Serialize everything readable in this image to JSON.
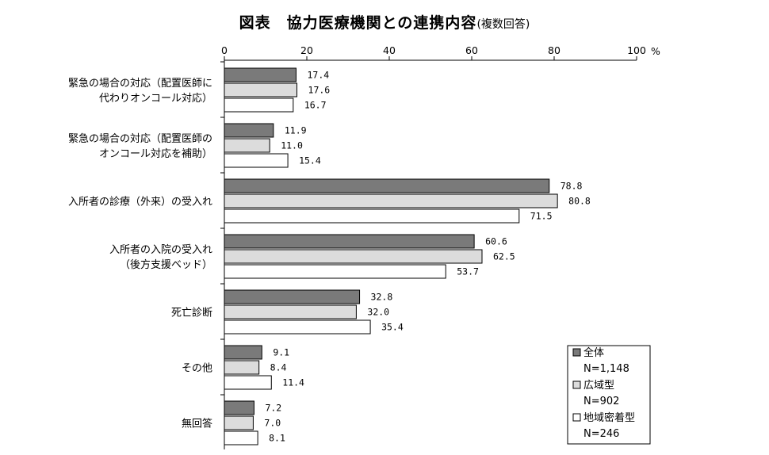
{
  "title": {
    "main": "図表　協力医療機関との連携内容",
    "sub": "(複数回答)"
  },
  "chart_data": {
    "type": "bar",
    "orientation": "horizontal",
    "unit": "%",
    "xlim": [
      0,
      100
    ],
    "ticks": [
      0,
      20,
      40,
      60,
      80,
      100
    ],
    "tick_labels": [
      "0",
      "20",
      "40",
      "60",
      "80",
      "100"
    ],
    "categories": [
      [
        "緊急の場合の対応（配置医師に",
        "代わりオンコール対応）"
      ],
      [
        "緊急の場合の対応（配置医師の",
        "オンコール対応を補助）"
      ],
      [
        "入所者の診療（外来）の受入れ"
      ],
      [
        "入所者の入院の受入れ",
        "（後方支援ベッド）"
      ],
      [
        "死亡診断"
      ],
      [
        "その他"
      ],
      [
        "無回答"
      ]
    ],
    "series": [
      {
        "name": "全体",
        "n_label": "N=1,148",
        "color": "#7a7a7a",
        "values": [
          17.4,
          11.9,
          78.8,
          60.6,
          32.8,
          9.1,
          7.2
        ],
        "labels": [
          "17.4",
          "11.9",
          "78.8",
          "60.6",
          "32.8",
          "9.1",
          "7.2"
        ]
      },
      {
        "name": "広域型",
        "n_label": "N=902",
        "color": "#dcdcdc",
        "values": [
          17.6,
          11.0,
          80.8,
          62.5,
          32.0,
          8.4,
          7.0
        ],
        "labels": [
          "17.6",
          "11.0",
          "80.8",
          "62.5",
          "32.0",
          "8.4",
          "7.0"
        ]
      },
      {
        "name": "地域密着型",
        "n_label": "N=246",
        "color": "#ffffff",
        "values": [
          16.7,
          15.4,
          71.5,
          53.7,
          35.4,
          11.4,
          8.1
        ],
        "labels": [
          "16.7",
          "15.4",
          "71.5",
          "53.7",
          "35.4",
          "11.4",
          "8.1"
        ]
      }
    ],
    "legend_position": "bottom-right",
    "grid": false
  }
}
